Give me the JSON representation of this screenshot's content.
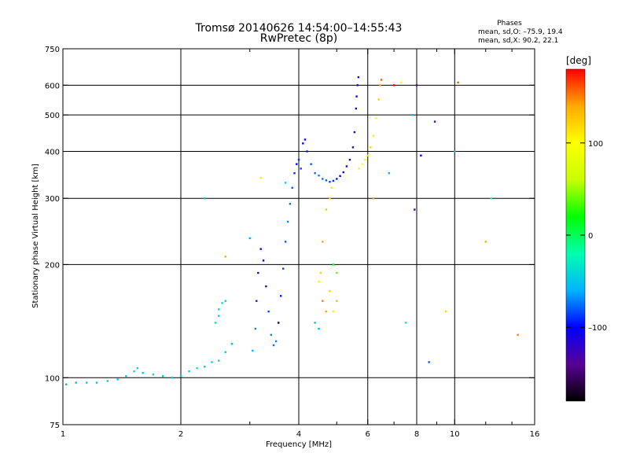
{
  "header": {
    "title": "Tromsø 20140626 14:54:00–14:55:43",
    "subtitle": "RwPretec (8p)"
  },
  "phase_box": {
    "title": "Phases",
    "line1": "mean, sd,O: –75.9, 19.4",
    "line2": "mean, sd,X:  90.2, 22.1"
  },
  "colorbar": {
    "label": "[deg]",
    "ticks": [
      {
        "value": 100,
        "label": "100"
      },
      {
        "value": 0,
        "label": "0"
      },
      {
        "value": -100,
        "label": "–100"
      }
    ],
    "range": [
      -180,
      180
    ],
    "colors": [
      "#000000",
      "#5a0094",
      "#0000ff",
      "#00b4ff",
      "#00ffb0",
      "#00ff00",
      "#c8ff00",
      "#ffff00",
      "#ffaa00",
      "#ff0000"
    ]
  },
  "chart_data": {
    "type": "scatter",
    "xlabel": "Frequency [MHz]",
    "ylabel": "Stationary phase Virtual Height [km]",
    "xscale": "log",
    "yscale": "log",
    "xlim": [
      1,
      16
    ],
    "ylim": [
      75,
      750
    ],
    "xticks": [
      {
        "value": 1,
        "label": "1"
      },
      {
        "value": 2,
        "label": "2"
      },
      {
        "value": 4,
        "label": "4"
      },
      {
        "value": 6,
        "label": "6"
      },
      {
        "value": 8,
        "label": "8"
      },
      {
        "value": 10,
        "label": "10"
      },
      {
        "value": 16,
        "label": "16"
      }
    ],
    "xgrid": [
      2,
      4,
      6,
      8,
      10
    ],
    "xminor": [
      3,
      5,
      7,
      9,
      12,
      14
    ],
    "yticks": [
      {
        "value": 75,
        "label": "75"
      },
      {
        "value": 100,
        "label": "100"
      },
      {
        "value": 200,
        "label": "200"
      },
      {
        "value": 300,
        "label": "300"
      },
      {
        "value": 400,
        "label": "400"
      },
      {
        "value": 500,
        "label": "500"
      },
      {
        "value": 600,
        "label": "600"
      },
      {
        "value": 750,
        "label": "750"
      }
    ],
    "ygrid": [
      100,
      200,
      300,
      400,
      500,
      600
    ],
    "points": [
      [
        1.02,
        96,
        -60
      ],
      [
        1.08,
        97,
        -55
      ],
      [
        1.15,
        97,
        -50
      ],
      [
        1.22,
        97,
        -55
      ],
      [
        1.3,
        98,
        -45
      ],
      [
        1.38,
        99,
        -50
      ],
      [
        1.45,
        101,
        -45
      ],
      [
        1.52,
        104,
        -40
      ],
      [
        1.55,
        106,
        -45
      ],
      [
        1.6,
        103,
        -50
      ],
      [
        1.7,
        102,
        -40
      ],
      [
        1.8,
        101,
        -45
      ],
      [
        1.9,
        100,
        -50
      ],
      [
        2.0,
        101,
        -40
      ],
      [
        2.1,
        104,
        -45
      ],
      [
        2.2,
        106,
        -40
      ],
      [
        2.3,
        107,
        -50
      ],
      [
        2.4,
        110,
        -45
      ],
      [
        2.5,
        111,
        -40
      ],
      [
        2.6,
        117,
        -45
      ],
      [
        2.7,
        123,
        -55
      ],
      [
        2.5,
        152,
        -40
      ],
      [
        2.55,
        158,
        -35
      ],
      [
        2.6,
        160,
        -45
      ],
      [
        2.5,
        146,
        -50
      ],
      [
        2.45,
        140,
        -30
      ],
      [
        3.05,
        118,
        -60
      ],
      [
        3.1,
        135,
        -70
      ],
      [
        3.12,
        160,
        -90
      ],
      [
        3.15,
        190,
        -110
      ],
      [
        3.2,
        220,
        -100
      ],
      [
        3.25,
        205,
        -100
      ],
      [
        3.3,
        175,
        -105
      ],
      [
        3.35,
        150,
        -85
      ],
      [
        3.4,
        130,
        -70
      ],
      [
        3.45,
        122,
        -75
      ],
      [
        3.5,
        125,
        -70
      ],
      [
        3.55,
        140,
        -80
      ],
      [
        3.6,
        165,
        -95
      ],
      [
        3.65,
        195,
        -85
      ],
      [
        3.7,
        230,
        -80
      ],
      [
        3.75,
        260,
        -70
      ],
      [
        3.8,
        290,
        -75
      ],
      [
        3.85,
        320,
        -80
      ],
      [
        3.9,
        350,
        -90
      ],
      [
        3.95,
        370,
        -100
      ],
      [
        4.0,
        380,
        -90
      ],
      [
        4.05,
        360,
        -85
      ],
      [
        4.1,
        420,
        -100
      ],
      [
        4.15,
        430,
        -105
      ],
      [
        4.2,
        400,
        -95
      ],
      [
        4.3,
        370,
        -80
      ],
      [
        4.4,
        350,
        -75
      ],
      [
        4.5,
        345,
        -70
      ],
      [
        4.6,
        338,
        -75
      ],
      [
        4.7,
        335,
        -80
      ],
      [
        4.8,
        332,
        -85
      ],
      [
        4.9,
        334,
        -90
      ],
      [
        5.0,
        338,
        -95
      ],
      [
        5.1,
        344,
        -100
      ],
      [
        5.2,
        352,
        -105
      ],
      [
        5.3,
        365,
        -110
      ],
      [
        5.4,
        380,
        -112
      ],
      [
        5.5,
        410,
        -115
      ],
      [
        5.55,
        450,
        -112
      ],
      [
        5.6,
        520,
        -110
      ],
      [
        5.62,
        560,
        -110
      ],
      [
        5.65,
        600,
        -115
      ],
      [
        5.68,
        630,
        -118
      ],
      [
        5.7,
        360,
        90
      ],
      [
        5.8,
        370,
        100
      ],
      [
        5.9,
        380,
        95
      ],
      [
        6.0,
        390,
        110
      ],
      [
        6.1,
        410,
        120
      ],
      [
        6.2,
        440,
        110
      ],
      [
        6.3,
        490,
        100
      ],
      [
        6.4,
        550,
        120
      ],
      [
        6.45,
        600,
        140
      ],
      [
        6.5,
        620,
        160
      ],
      [
        4.6,
        230,
        140
      ],
      [
        4.7,
        280,
        130
      ],
      [
        4.8,
        300,
        120
      ],
      [
        4.85,
        320,
        110
      ],
      [
        4.9,
        200,
        20
      ],
      [
        5.0,
        190,
        40
      ],
      [
        4.6,
        160,
        150
      ],
      [
        4.7,
        150,
        140
      ],
      [
        4.8,
        170,
        120
      ],
      [
        4.9,
        150,
        110
      ],
      [
        5.0,
        160,
        130
      ],
      [
        4.5,
        180,
        80
      ],
      [
        4.4,
        140,
        -55
      ],
      [
        4.5,
        135,
        -60
      ],
      [
        4.55,
        190,
        120
      ],
      [
        6.8,
        350,
        -60
      ],
      [
        7.0,
        600,
        180
      ],
      [
        7.3,
        610,
        100
      ],
      [
        7.5,
        140,
        -30
      ],
      [
        7.8,
        500,
        -60
      ],
      [
        7.9,
        280,
        -130
      ],
      [
        8.0,
        600,
        -140
      ],
      [
        8.2,
        390,
        -100
      ],
      [
        8.6,
        110,
        -80
      ],
      [
        8.9,
        480,
        -140
      ],
      [
        9.5,
        150,
        120
      ],
      [
        10.2,
        610,
        160
      ],
      [
        10.0,
        400,
        -50
      ],
      [
        12.0,
        230,
        140
      ],
      [
        14.5,
        130,
        150
      ],
      [
        12.4,
        300,
        -20
      ],
      [
        3.2,
        340,
        110
      ],
      [
        2.6,
        210,
        140
      ],
      [
        2.3,
        300,
        -50
      ],
      [
        3.0,
        235,
        -60
      ],
      [
        3.55,
        140,
        -150
      ],
      [
        3.7,
        330,
        -45
      ],
      [
        6.2,
        300,
        140
      ]
    ]
  }
}
